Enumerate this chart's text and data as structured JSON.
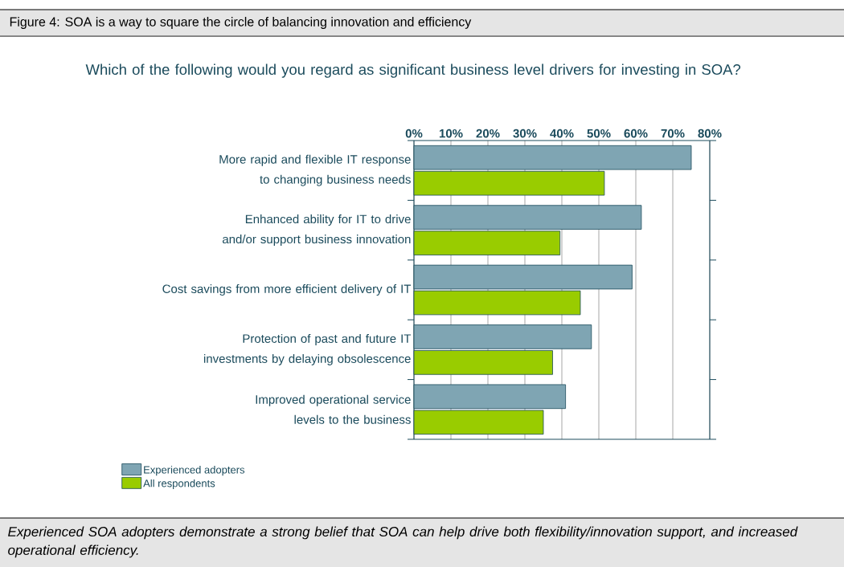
{
  "chart_data": {
    "type": "bar",
    "orientation": "horizontal",
    "title": "Figure 4: SOA is a way to square the circle of balancing innovation and efficiency",
    "subtitle": "Which of the following would you regard as significant business level drivers for investing in SOA?",
    "categories": [
      "More rapid and flexible IT response to changing business needs",
      "Enhanced ability for IT to drive and/or support business innovation",
      "Cost savings from more efficient delivery of IT",
      "Protection of past and future IT investments by delaying obsolescence",
      "Improved operational service levels to the business"
    ],
    "series": [
      {
        "name": "Experienced adopters",
        "color": "#7fa5b3",
        "values": [
          75,
          61.5,
          59,
          48,
          41
        ]
      },
      {
        "name": "All respondents",
        "color": "#99cc00",
        "values": [
          51.5,
          39.5,
          45,
          37.5,
          35
        ]
      }
    ],
    "xlim": [
      0,
      80
    ],
    "xticks": [
      {
        "value": 0,
        "label": "0%"
      },
      {
        "value": 10,
        "label": "10%"
      },
      {
        "value": 20,
        "label": "20%"
      },
      {
        "value": 30,
        "label": "30%"
      },
      {
        "value": 40,
        "label": "40%"
      },
      {
        "value": 50,
        "label": "50%"
      },
      {
        "value": 60,
        "label": "60%"
      },
      {
        "value": 70,
        "label": "70%"
      },
      {
        "value": 80,
        "label": "80%"
      }
    ],
    "grid": "x",
    "legend": "bottom left",
    "annotations": [
      "Experienced SOA adopters demonstrate a strong belief that SOA can help drive both flexibility/innovation support, and increased operational efficiency."
    ]
  }
}
